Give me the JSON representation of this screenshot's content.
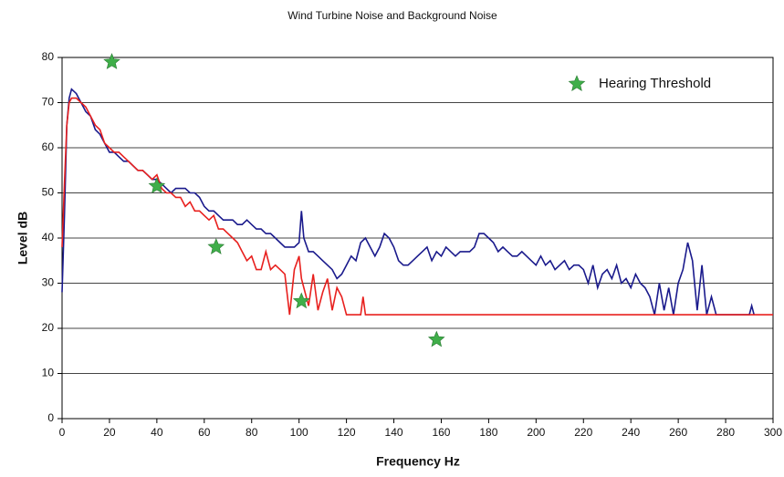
{
  "chart_data": {
    "type": "line",
    "title": "Wind Turbine Noise and Background Noise",
    "x_label": "Frequency Hz",
    "y_label": "Level dB",
    "xlim": [
      0,
      300
    ],
    "xticks": [
      0,
      20,
      40,
      60,
      80,
      100,
      120,
      140,
      160,
      180,
      200,
      220,
      240,
      260,
      280,
      300
    ],
    "ylim": [
      0,
      80
    ],
    "yticks": [
      0,
      10,
      20,
      30,
      40,
      50,
      60,
      70,
      80
    ],
    "grid": true,
    "legend": "upper right",
    "series": [
      {
        "color": "#1a1a8c",
        "x": [
          0,
          1,
          2,
          3,
          4,
          6,
          8,
          10,
          12,
          14,
          16,
          18,
          20,
          22,
          24,
          26,
          28,
          30,
          32,
          34,
          36,
          38,
          40,
          42,
          44,
          46,
          48,
          50,
          52,
          54,
          56,
          58,
          60,
          62,
          64,
          66,
          68,
          70,
          72,
          74,
          76,
          78,
          80,
          82,
          84,
          86,
          88,
          90,
          92,
          94,
          96,
          98,
          100,
          101,
          102,
          104,
          106,
          108,
          110,
          112,
          114,
          116,
          118,
          120,
          122,
          124,
          126,
          128,
          130,
          132,
          134,
          136,
          138,
          140,
          142,
          144,
          146,
          148,
          150,
          152,
          154,
          156,
          158,
          160,
          162,
          164,
          166,
          168,
          170,
          172,
          174,
          176,
          178,
          180,
          182,
          184,
          186,
          188,
          190,
          192,
          194,
          196,
          198,
          200,
          202,
          204,
          206,
          208,
          210,
          212,
          214,
          216,
          218,
          220,
          222,
          224,
          226,
          228,
          230,
          232,
          234,
          236,
          238,
          240,
          242,
          244,
          246,
          248,
          250,
          252,
          254,
          256,
          258,
          260,
          262,
          264,
          266,
          268,
          270,
          272,
          274,
          276,
          280,
          290,
          291,
          292
        ],
        "values": [
          28,
          45,
          65,
          71,
          73,
          72,
          70,
          68,
          67,
          64,
          63,
          61,
          59,
          59,
          58,
          57,
          57,
          56,
          55,
          55,
          54,
          53,
          53,
          52,
          51,
          50,
          51,
          51,
          51,
          50,
          50,
          49,
          47,
          46,
          46,
          45,
          44,
          44,
          44,
          43,
          43,
          44,
          43,
          42,
          42,
          41,
          41,
          40,
          39,
          38,
          38,
          38,
          39,
          46,
          40,
          37,
          37,
          36,
          35,
          34,
          33,
          31,
          32,
          34,
          36,
          35,
          39,
          40,
          38,
          36,
          38,
          41,
          40,
          38,
          35,
          34,
          34,
          35,
          36,
          37,
          38,
          35,
          37,
          36,
          38,
          37,
          36,
          37,
          37,
          37,
          38,
          41,
          41,
          40,
          39,
          37,
          38,
          37,
          36,
          36,
          37,
          36,
          35,
          34,
          36,
          34,
          35,
          33,
          34,
          35,
          33,
          34,
          34,
          33,
          30,
          34,
          29,
          32,
          33,
          31,
          34,
          30,
          31,
          29,
          32,
          30,
          29,
          27,
          23,
          30,
          24,
          29,
          23,
          30,
          33,
          39,
          35,
          24,
          34,
          23,
          27,
          23,
          23,
          23,
          25,
          23
        ]
      },
      {
        "color": "#e8201e",
        "x": [
          0,
          1,
          2,
          3,
          4,
          6,
          8,
          10,
          12,
          14,
          16,
          18,
          20,
          22,
          24,
          26,
          28,
          30,
          32,
          34,
          36,
          38,
          40,
          42,
          44,
          46,
          48,
          50,
          52,
          54,
          56,
          58,
          60,
          62,
          64,
          66,
          68,
          70,
          72,
          74,
          76,
          78,
          80,
          82,
          84,
          86,
          88,
          90,
          92,
          94,
          96,
          98,
          100,
          101,
          102,
          104,
          106,
          108,
          110,
          112,
          114,
          116,
          118,
          120,
          122,
          126,
          127,
          128,
          300
        ],
        "values": [
          38,
          52,
          65,
          70,
          71,
          71,
          70,
          69,
          67,
          65,
          64,
          61,
          60,
          59,
          59,
          58,
          57,
          56,
          55,
          55,
          54,
          53,
          54,
          51,
          50,
          50,
          49,
          49,
          47,
          48,
          46,
          46,
          45,
          44,
          45,
          42,
          42,
          41,
          40,
          39,
          37,
          35,
          36,
          33,
          33,
          37,
          33,
          34,
          33,
          32,
          23,
          33,
          36,
          31,
          29,
          25,
          32,
          24,
          28,
          31,
          24,
          29,
          27,
          23,
          23,
          23,
          27,
          23,
          23
        ]
      },
      {
        "type": "scatter",
        "name": "Hearing Threshold",
        "color": "#3fae49",
        "x": [
          21,
          40,
          65,
          101,
          158
        ],
        "values": [
          79,
          51.5,
          38,
          26,
          17.5
        ]
      }
    ]
  }
}
